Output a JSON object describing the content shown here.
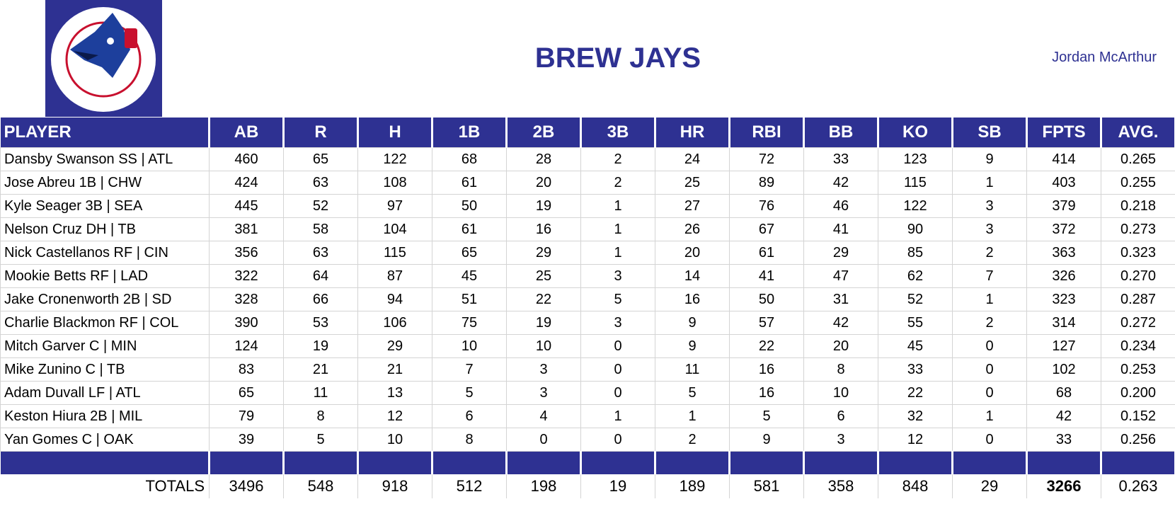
{
  "header": {
    "title": "BREW JAYS",
    "owner": "Jordan McArthur"
  },
  "table": {
    "headers": [
      "PLAYER",
      "AB",
      "R",
      "H",
      "1B",
      "2B",
      "3B",
      "HR",
      "RBI",
      "BB",
      "KO",
      "SB",
      "FPTS",
      "AVG."
    ],
    "rows": [
      [
        "Dansby Swanson SS | ATL",
        460,
        65,
        122,
        68,
        28,
        2,
        24,
        72,
        33,
        123,
        9,
        414,
        "0.265"
      ],
      [
        "Jose Abreu 1B | CHW",
        424,
        63,
        108,
        61,
        20,
        2,
        25,
        89,
        42,
        115,
        1,
        403,
        "0.255"
      ],
      [
        "Kyle Seager 3B | SEA",
        445,
        52,
        97,
        50,
        19,
        1,
        27,
        76,
        46,
        122,
        3,
        379,
        "0.218"
      ],
      [
        "Nelson Cruz DH | TB",
        381,
        58,
        104,
        61,
        16,
        1,
        26,
        67,
        41,
        90,
        3,
        372,
        "0.273"
      ],
      [
        "Nick Castellanos RF | CIN",
        356,
        63,
        115,
        65,
        29,
        1,
        20,
        61,
        29,
        85,
        2,
        363,
        "0.323"
      ],
      [
        "Mookie Betts RF | LAD",
        322,
        64,
        87,
        45,
        25,
        3,
        14,
        41,
        47,
        62,
        7,
        326,
        "0.270"
      ],
      [
        "Jake Cronenworth 2B | SD",
        328,
        66,
        94,
        51,
        22,
        5,
        16,
        50,
        31,
        52,
        1,
        323,
        "0.287"
      ],
      [
        "Charlie Blackmon RF | COL",
        390,
        53,
        106,
        75,
        19,
        3,
        9,
        57,
        42,
        55,
        2,
        314,
        "0.272"
      ],
      [
        "Mitch Garver C | MIN",
        124,
        19,
        29,
        10,
        10,
        0,
        9,
        22,
        20,
        45,
        0,
        127,
        "0.234"
      ],
      [
        "Mike Zunino C | TB",
        83,
        21,
        21,
        7,
        3,
        0,
        11,
        16,
        8,
        33,
        0,
        102,
        "0.253"
      ],
      [
        "Adam Duvall LF | ATL",
        65,
        11,
        13,
        5,
        3,
        0,
        5,
        16,
        10,
        22,
        0,
        68,
        "0.200"
      ],
      [
        "Keston Hiura 2B | MIL",
        79,
        8,
        12,
        6,
        4,
        1,
        1,
        5,
        6,
        32,
        1,
        42,
        "0.152"
      ],
      [
        "Yan Gomes C | OAK",
        39,
        5,
        10,
        8,
        0,
        0,
        2,
        9,
        3,
        12,
        0,
        33,
        "0.256"
      ]
    ],
    "totals": {
      "label": "TOTALS",
      "values": [
        3496,
        548,
        918,
        512,
        198,
        19,
        189,
        581,
        358,
        848,
        29,
        3266,
        "0.263"
      ]
    }
  }
}
